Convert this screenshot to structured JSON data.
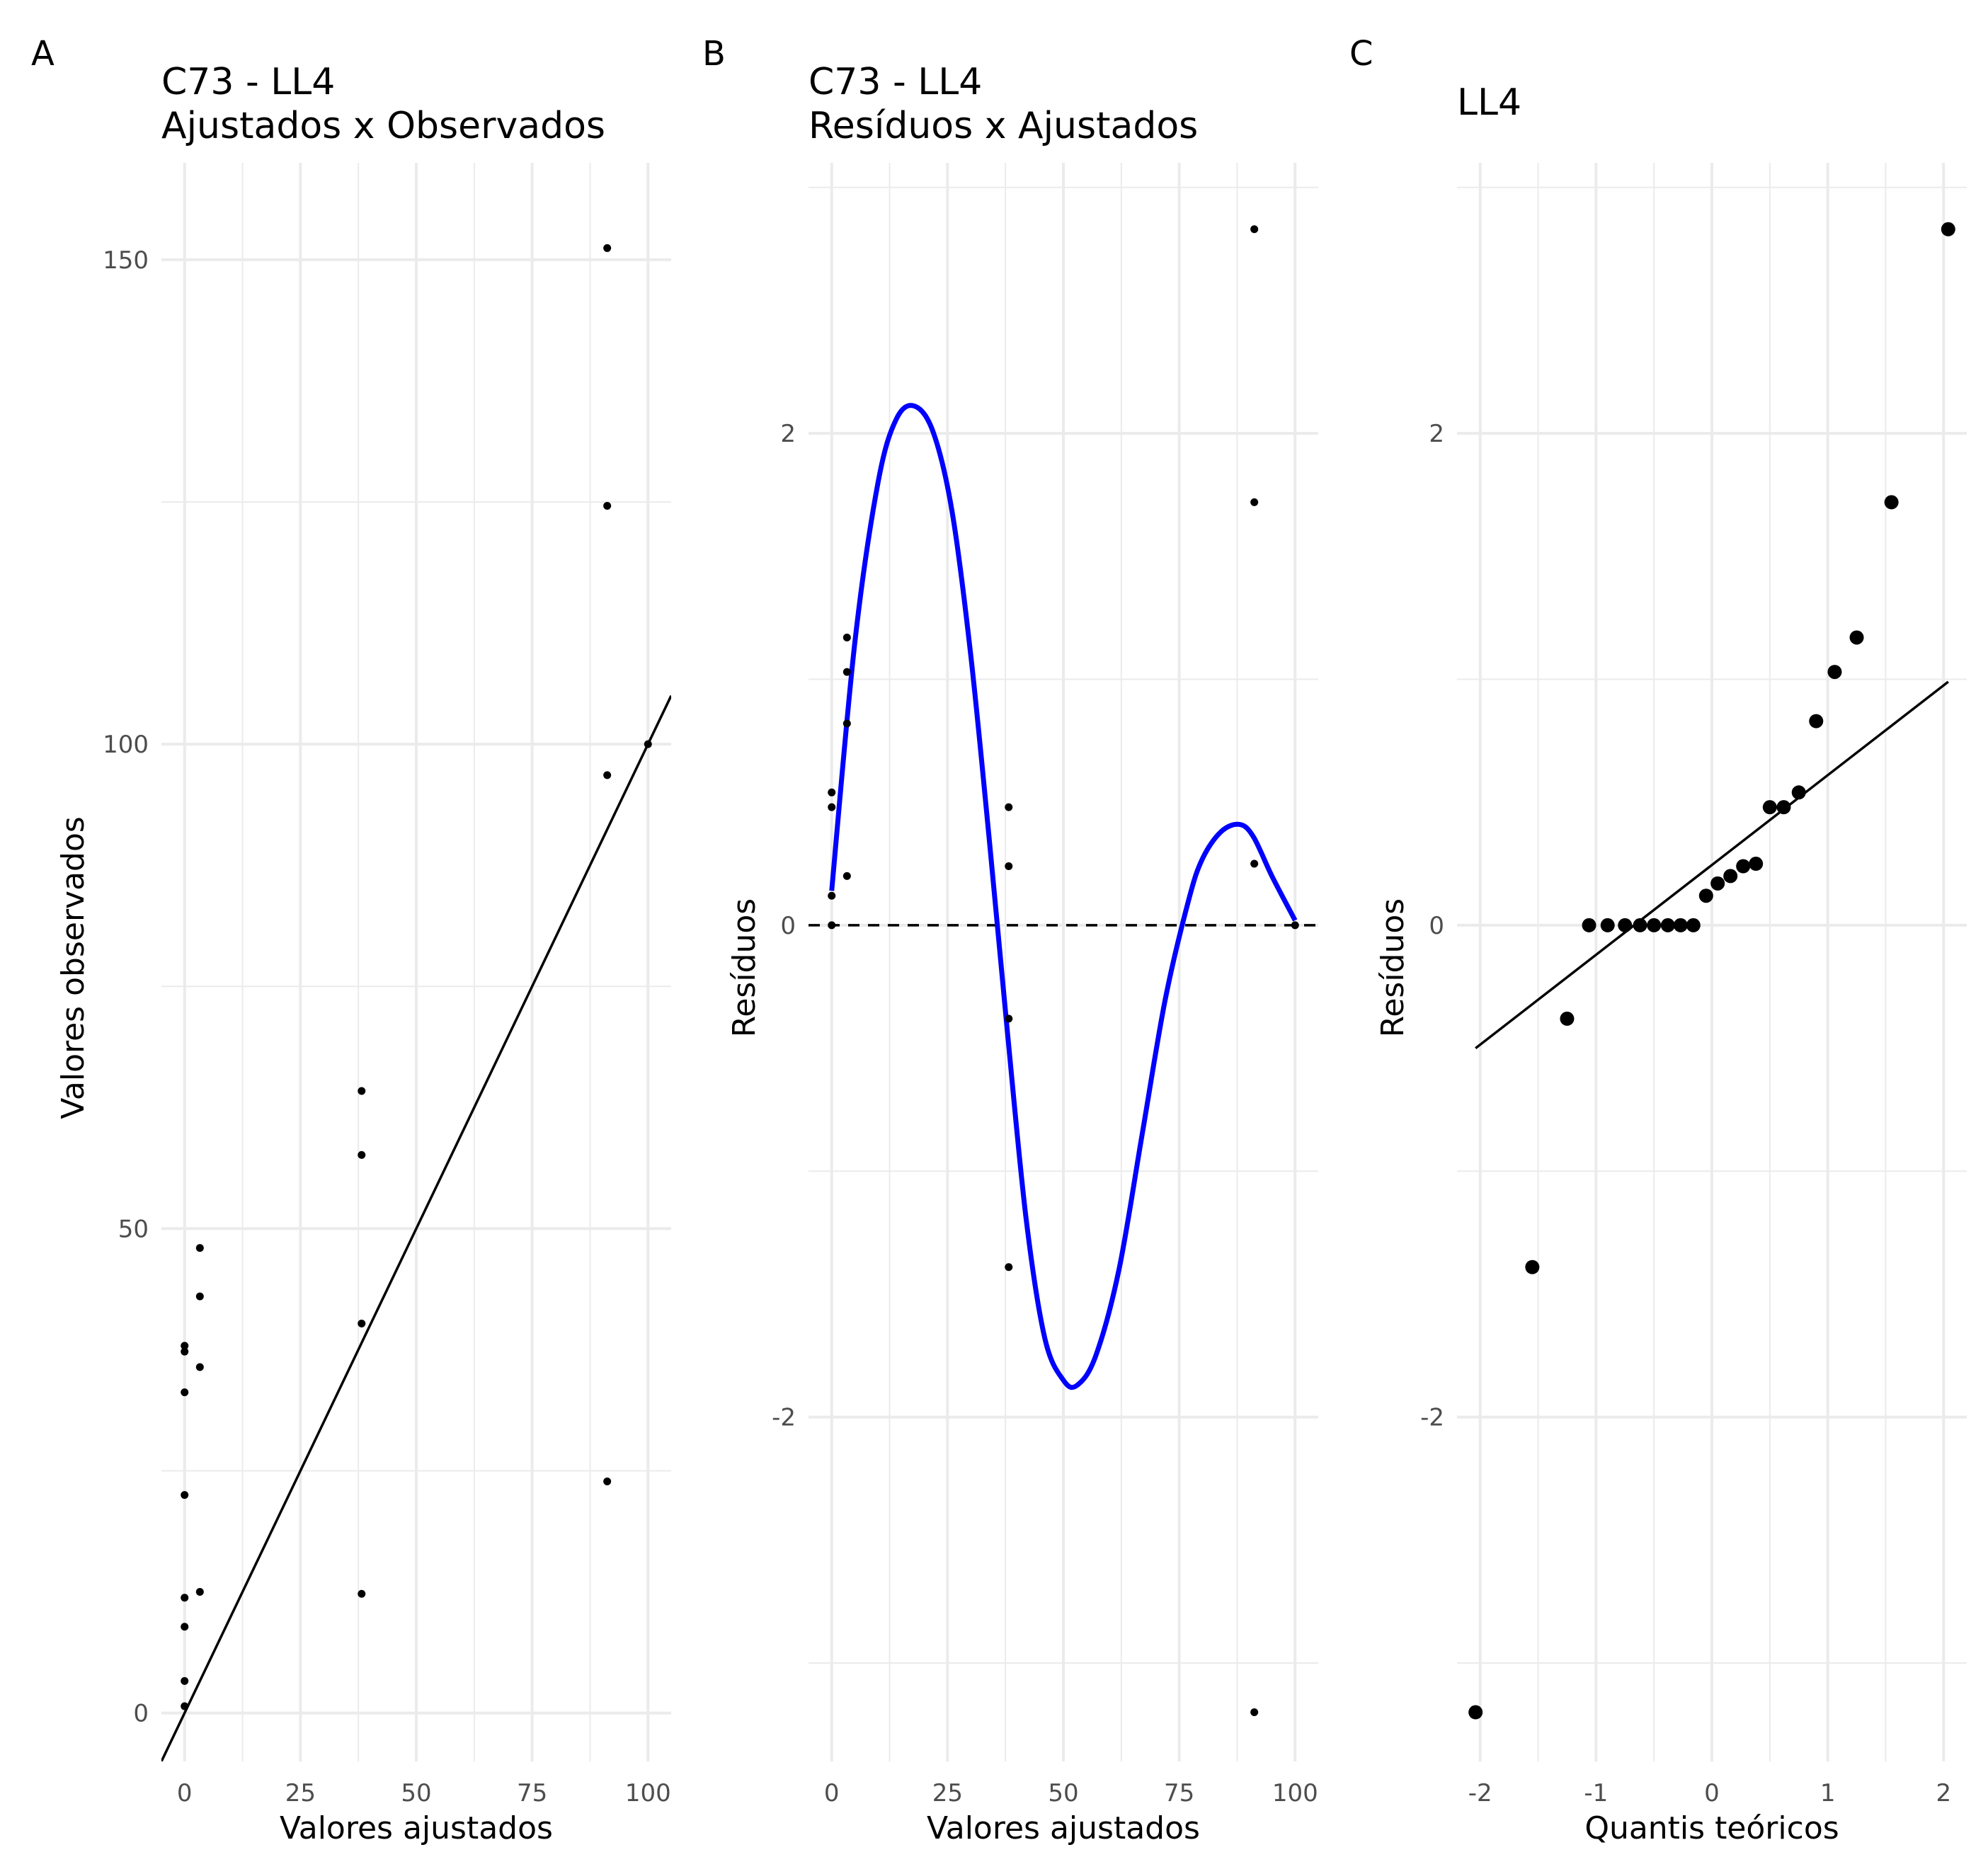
{
  "chart_data": [
    {
      "panel_tag": "A",
      "type": "scatter",
      "title": " C73 - LL4",
      "subtitle": "Ajustados x Observados",
      "xlabel": "Valores ajustados",
      "ylabel": "Valores observados",
      "xlim": [
        -5,
        105
      ],
      "ylim": [
        -5,
        160
      ],
      "x_ticks": [
        0,
        25,
        50,
        75,
        100
      ],
      "y_ticks": [
        0,
        50,
        100,
        150
      ],
      "grid": true,
      "points": [
        {
          "x": 0,
          "y": 0.7
        },
        {
          "x": 0,
          "y": 3.3
        },
        {
          "x": 0,
          "y": 8.9
        },
        {
          "x": 0,
          "y": 11.9
        },
        {
          "x": 0,
          "y": 22.5
        },
        {
          "x": 0,
          "y": 33.1
        },
        {
          "x": 0,
          "y": 37.3
        },
        {
          "x": 0,
          "y": 37.9
        },
        {
          "x": 3.3,
          "y": 12.5
        },
        {
          "x": 3.3,
          "y": 35.7
        },
        {
          "x": 3.3,
          "y": 43.0
        },
        {
          "x": 3.3,
          "y": 48.0
        },
        {
          "x": 38.2,
          "y": 12.3
        },
        {
          "x": 38.2,
          "y": 40.2
        },
        {
          "x": 38.2,
          "y": 57.6
        },
        {
          "x": 38.2,
          "y": 64.2
        },
        {
          "x": 91.2,
          "y": 23.9
        },
        {
          "x": 91.2,
          "y": 96.8
        },
        {
          "x": 91.2,
          "y": 124.6
        },
        {
          "x": 91.2,
          "y": 151.2
        },
        {
          "x": 100,
          "y": 100
        }
      ],
      "line": {
        "intercept": 0,
        "slope": 1
      }
    },
    {
      "panel_tag": "B",
      "type": "scatter",
      "title": "C73 - LL4",
      "subtitle": "Resíduos x Ajustados",
      "xlabel": "Valores ajustados",
      "ylabel": "Resíduos",
      "xlim": [
        -5,
        105
      ],
      "ylim": [
        -3.4,
        3.1
      ],
      "x_ticks": [
        0,
        25,
        50,
        75,
        100
      ],
      "y_ticks": [
        -2,
        0,
        2
      ],
      "grid": true,
      "points": [
        {
          "x": 0,
          "y": 0
        },
        {
          "x": 0,
          "y": 0.12
        },
        {
          "x": 0,
          "y": 0.48
        },
        {
          "x": 0,
          "y": 0.54
        },
        {
          "x": 3.3,
          "y": 0.2
        },
        {
          "x": 3.3,
          "y": 0.82
        },
        {
          "x": 3.3,
          "y": 1.03
        },
        {
          "x": 3.3,
          "y": 1.17
        },
        {
          "x": 38.2,
          "y": -1.39
        },
        {
          "x": 38.2,
          "y": -0.38
        },
        {
          "x": 38.2,
          "y": 0.24
        },
        {
          "x": 38.2,
          "y": 0.48
        },
        {
          "x": 91.2,
          "y": -3.2
        },
        {
          "x": 91.2,
          "y": 0.25
        },
        {
          "x": 91.2,
          "y": 1.72
        },
        {
          "x": 91.2,
          "y": 2.83
        },
        {
          "x": 100,
          "y": 0
        }
      ],
      "smooth_color": "#0000ff",
      "smooth_curve": [
        {
          "x": 0,
          "y": 0.14
        },
        {
          "x": 5,
          "y": 1.15
        },
        {
          "x": 10,
          "y": 1.8
        },
        {
          "x": 14,
          "y": 2.06
        },
        {
          "x": 18,
          "y": 2.11
        },
        {
          "x": 22,
          "y": 2.0
        },
        {
          "x": 26,
          "y": 1.68
        },
        {
          "x": 30,
          "y": 1.1
        },
        {
          "x": 34,
          "y": 0.35
        },
        {
          "x": 38,
          "y": -0.45
        },
        {
          "x": 42,
          "y": -1.2
        },
        {
          "x": 46,
          "y": -1.68
        },
        {
          "x": 50,
          "y": -1.85
        },
        {
          "x": 53,
          "y": -1.87
        },
        {
          "x": 57,
          "y": -1.75
        },
        {
          "x": 62,
          "y": -1.4
        },
        {
          "x": 67,
          "y": -0.85
        },
        {
          "x": 72,
          "y": -0.3
        },
        {
          "x": 77,
          "y": 0.1
        },
        {
          "x": 80,
          "y": 0.27
        },
        {
          "x": 84,
          "y": 0.38
        },
        {
          "x": 88,
          "y": 0.41
        },
        {
          "x": 91,
          "y": 0.36
        },
        {
          "x": 95,
          "y": 0.2
        },
        {
          "x": 100,
          "y": 0.02
        }
      ],
      "reference_line": {
        "y": 0,
        "style": "dashed"
      }
    },
    {
      "panel_tag": "C",
      "type": "scatter",
      "title": "LL4",
      "subtitle": "",
      "xlabel": "Quantis teóricos",
      "ylabel": "Resíduos",
      "xlim": [
        -2.2,
        2.2
      ],
      "ylim": [
        -3.4,
        3.1
      ],
      "x_ticks": [
        -2,
        -1,
        0,
        1,
        2
      ],
      "y_ticks": [
        -2,
        0,
        2
      ],
      "grid": true,
      "points": [
        {
          "x": -2.04,
          "y": -3.2
        },
        {
          "x": -1.55,
          "y": -1.39
        },
        {
          "x": -1.25,
          "y": -0.38
        },
        {
          "x": -1.06,
          "y": 0
        },
        {
          "x": -0.9,
          "y": 0
        },
        {
          "x": -0.75,
          "y": 0
        },
        {
          "x": -0.62,
          "y": 0
        },
        {
          "x": -0.5,
          "y": 0
        },
        {
          "x": -0.38,
          "y": 0
        },
        {
          "x": -0.27,
          "y": 0
        },
        {
          "x": -0.16,
          "y": 0
        },
        {
          "x": -0.05,
          "y": 0.12
        },
        {
          "x": 0.05,
          "y": 0.17
        },
        {
          "x": 0.16,
          "y": 0.2
        },
        {
          "x": 0.27,
          "y": 0.24
        },
        {
          "x": 0.38,
          "y": 0.25
        },
        {
          "x": 0.5,
          "y": 0.48
        },
        {
          "x": 0.62,
          "y": 0.48
        },
        {
          "x": 0.75,
          "y": 0.54
        },
        {
          "x": 0.9,
          "y": 0.83
        },
        {
          "x": 1.06,
          "y": 1.03
        },
        {
          "x": 1.25,
          "y": 1.17
        },
        {
          "x": 1.55,
          "y": 1.72
        },
        {
          "x": 2.04,
          "y": 2.83
        }
      ],
      "line": {
        "from": {
          "x": -2.04,
          "y": -0.5
        },
        "to": {
          "x": 2.04,
          "y": 0.99
        }
      }
    }
  ]
}
